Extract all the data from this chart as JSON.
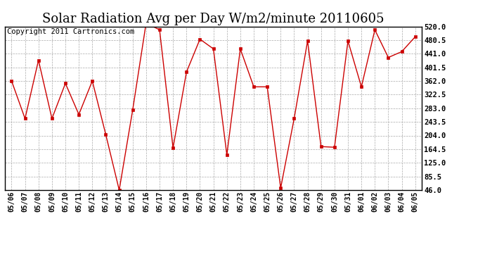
{
  "title": "Solar Radiation Avg per Day W/m2/minute 20110605",
  "copyright": "Copyright 2011 Cartronics.com",
  "dates": [
    "05/06",
    "05/07",
    "05/08",
    "05/09",
    "05/10",
    "05/11",
    "05/12",
    "05/13",
    "05/14",
    "05/15",
    "05/16",
    "05/17",
    "05/18",
    "05/19",
    "05/20",
    "05/21",
    "05/22",
    "05/23",
    "05/24",
    "05/25",
    "05/26",
    "05/27",
    "05/28",
    "05/29",
    "05/30",
    "05/31",
    "06/01",
    "06/02",
    "06/03",
    "06/04",
    "06/05"
  ],
  "values": [
    362,
    253,
    422,
    253,
    355,
    265,
    362,
    207,
    46,
    278,
    530,
    510,
    168,
    388,
    483,
    455,
    148,
    455,
    345,
    345,
    52,
    253,
    478,
    172,
    170,
    478,
    345,
    510,
    430,
    447,
    490
  ],
  "line_color": "#cc0000",
  "marker_color": "#cc0000",
  "bg_color": "#ffffff",
  "plot_bg_color": "#ffffff",
  "grid_color": "#aaaaaa",
  "yticks": [
    46.0,
    85.5,
    125.0,
    164.5,
    204.0,
    243.5,
    283.0,
    322.5,
    362.0,
    401.5,
    441.0,
    480.5,
    520.0
  ],
  "ylim": [
    46.0,
    520.0
  ],
  "title_fontsize": 13,
  "copyright_fontsize": 7.5
}
